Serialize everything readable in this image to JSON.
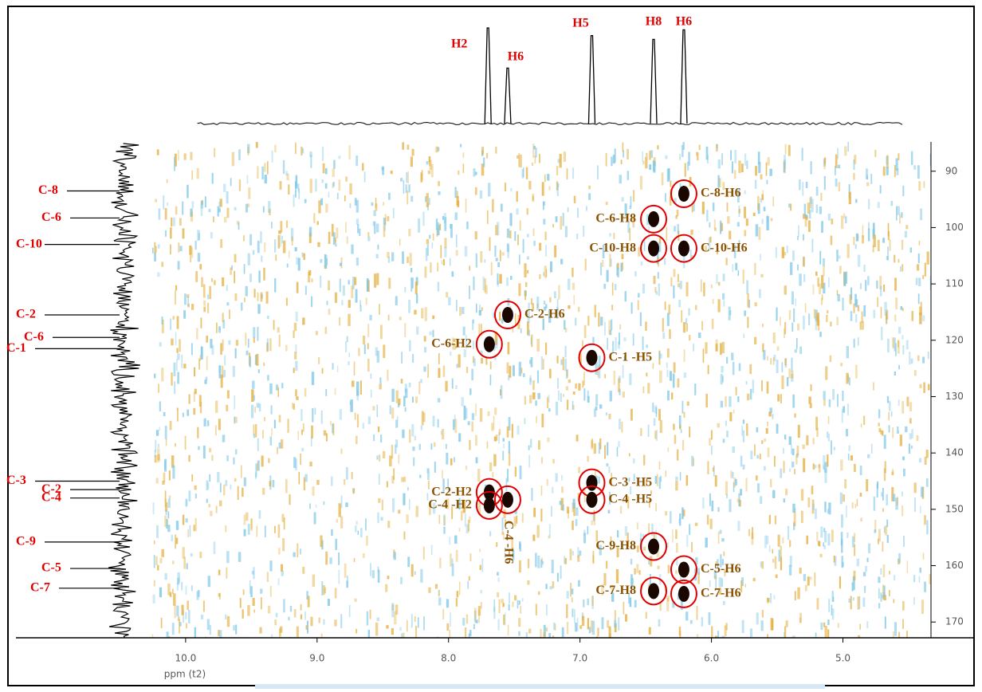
{
  "chart_data": {
    "type": "hmbc",
    "xlabel": "ppm (t2)",
    "xlim": [
      10.26,
      4.33
    ],
    "xticks": [
      {
        "value": 10,
        "label": "10.0"
      },
      {
        "value": 9,
        "label": "9.0"
      },
      {
        "value": 8,
        "label": "8.0"
      },
      {
        "value": 7,
        "label": "7.0"
      },
      {
        "value": 6,
        "label": "6.0"
      },
      {
        "value": 5,
        "label": "5.0"
      }
    ],
    "ylim": [
      84.8,
      172.8
    ],
    "yticks": [
      90,
      100,
      110,
      120,
      130,
      140,
      150,
      160,
      170
    ],
    "peak_color": "#1a0800",
    "label_color": "#8a5200",
    "ring_color": "#e00000",
    "assignment_color": "#e00000",
    "peaks": {
      "x": [
        6.21,
        6.44,
        6.44,
        6.21,
        7.55,
        7.69,
        6.91,
        6.91,
        6.91,
        7.69,
        7.69,
        7.55,
        6.44,
        6.21,
        6.44,
        6.21
      ],
      "y": [
        94.0,
        98.5,
        103.7,
        103.7,
        115.5,
        120.7,
        123.1,
        145.3,
        148.3,
        147.0,
        149.3,
        148.3,
        156.6,
        160.7,
        164.5,
        165.0
      ],
      "labels": [
        "C-8-H6",
        "C-6-H8",
        "C-10-H8",
        "C-10-H6",
        "C-2-H6",
        "C-6-H2",
        "C-1 -H5",
        "C-3 -H5",
        "C-4 -H5",
        "C-2-H2",
        "C-4 -H2",
        "C-4 -H6",
        "C-9-H8",
        "C-5-H6",
        "C-7-H8",
        "C-7-H6"
      ]
    },
    "proton_peaks": {
      "x": [
        7.7,
        7.55,
        6.91,
        6.44,
        6.21
      ],
      "values": [
        100,
        58,
        92,
        88,
        98
      ],
      "labels": [
        "H2",
        "H6",
        "H5",
        "H8",
        "H6"
      ]
    },
    "carbon_assignments": {
      "y": [
        93.5,
        98.3,
        103.0,
        115.5,
        119.5,
        121.5,
        145.0,
        146.5,
        148.0,
        155.8,
        160.5,
        164.0
      ],
      "labels": [
        "C-8",
        "C-6",
        "C-10",
        "C-2",
        "C-6",
        "C-1",
        "C-3",
        "C-2",
        "C-4",
        "C-9",
        "C-5",
        "C-7"
      ]
    }
  }
}
